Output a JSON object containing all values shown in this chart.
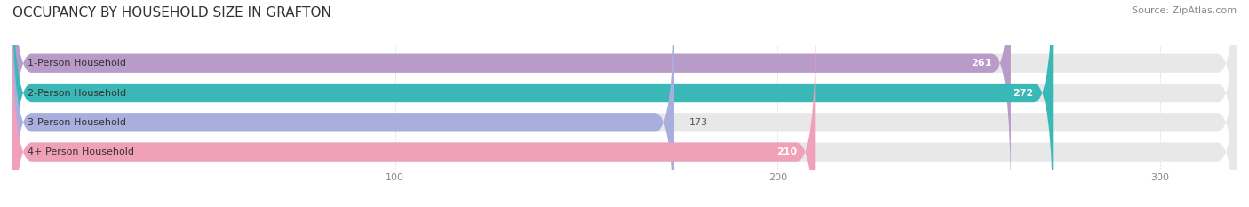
{
  "title": "OCCUPANCY BY HOUSEHOLD SIZE IN GRAFTON",
  "source": "Source: ZipAtlas.com",
  "categories": [
    "1-Person Household",
    "2-Person Household",
    "3-Person Household",
    "4+ Person Household"
  ],
  "values": [
    261,
    272,
    173,
    210
  ],
  "bar_colors": [
    "#b89bc8",
    "#3ab8b8",
    "#a8aedd",
    "#f0a0b8"
  ],
  "bar_bg_color": "#f0f0f0",
  "label_colors": [
    "white",
    "white",
    "#555555",
    "#555555"
  ],
  "xlim": [
    0,
    320
  ],
  "xticks": [
    100,
    200,
    300
  ],
  "title_fontsize": 11,
  "source_fontsize": 8,
  "label_fontsize": 8,
  "value_fontsize": 8,
  "bar_height": 0.62,
  "background_color": "#ffffff"
}
